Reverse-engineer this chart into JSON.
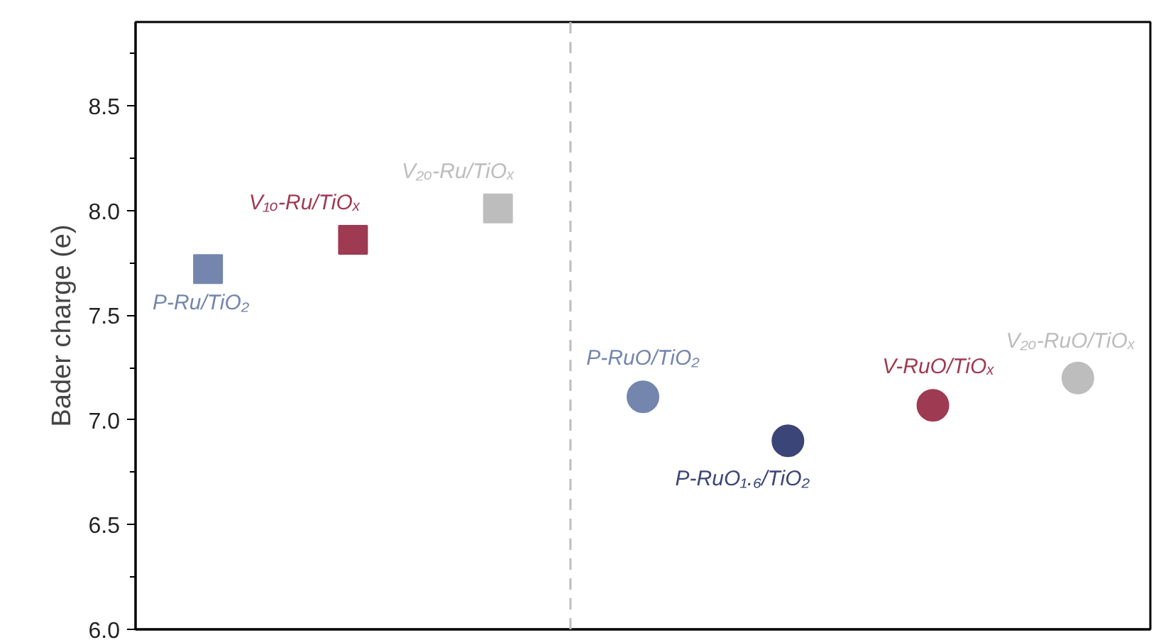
{
  "chart_data": {
    "type": "scatter",
    "ylabel": "Bader charge (e)",
    "categories": [
      null,
      null,
      null,
      null,
      null,
      null,
      null
    ],
    "ylim": [
      6.0,
      8.9
    ],
    "yticks": [
      {
        "value": 6.0,
        "label": "6.0"
      },
      {
        "value": 6.5,
        "label": "6.5"
      },
      {
        "value": 7.0,
        "label": "7.0"
      },
      {
        "value": 7.5,
        "label": "7.5"
      },
      {
        "value": 8.0,
        "label": "8.0"
      },
      {
        "value": 8.5,
        "label": "8.5"
      }
    ],
    "tick_labels": "y",
    "ref_lines": [
      {
        "axis": "x",
        "color": "#bdbdbd",
        "line_style": "dashed"
      }
    ],
    "series": [
      {
        "name": "P-Ru/TiO₂",
        "color": "#7486ad",
        "marker": "square",
        "values": [
          7.72,
          null,
          null,
          null,
          null,
          null,
          null
        ]
      },
      {
        "name": "V₁ₒ-Ru/TiOₓ",
        "color": "#9e3a52",
        "marker": "square",
        "values": [
          null,
          7.86,
          null,
          null,
          null,
          null,
          null
        ]
      },
      {
        "name": "V₂ₒ-Ru/TiOₓ",
        "color": "#bdbdbd",
        "marker": "square",
        "values": [
          null,
          null,
          8.01,
          null,
          null,
          null,
          null
        ]
      },
      {
        "name": "P-RuO/TiO₂",
        "color": "#7486ad",
        "marker": "circle",
        "values": [
          null,
          null,
          null,
          7.11,
          null,
          null,
          null
        ]
      },
      {
        "name": "P-RuO₁.₆/TiO₂",
        "color": "#3c4577",
        "marker": "circle",
        "values": [
          null,
          null,
          null,
          null,
          6.9,
          null,
          null
        ]
      },
      {
        "name": "V-RuO/TiOₓ",
        "color": "#9e3a52",
        "marker": "circle",
        "values": [
          null,
          null,
          null,
          null,
          null,
          7.07,
          null
        ]
      },
      {
        "name": "V₂ₒ-RuO/TiOₓ",
        "color": "#bdbdbd",
        "marker": "circle",
        "values": [
          null,
          null,
          null,
          null,
          null,
          null,
          7.2
        ]
      }
    ]
  }
}
